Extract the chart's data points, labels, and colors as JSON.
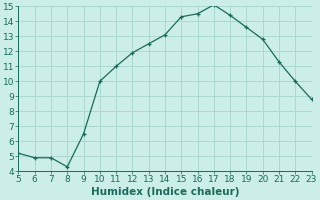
{
  "x": [
    5,
    6,
    7,
    8,
    9,
    10,
    11,
    12,
    13,
    14,
    15,
    16,
    17,
    18,
    19,
    20,
    21,
    22,
    23
  ],
  "y": [
    5.2,
    4.9,
    4.9,
    4.3,
    6.5,
    10.0,
    11.0,
    11.9,
    12.5,
    13.1,
    14.3,
    14.5,
    15.1,
    14.4,
    13.6,
    12.8,
    11.3,
    10.0,
    8.8
  ],
  "line_color": "#1a6b5a",
  "marker": "+",
  "bg_color": "#cceee8",
  "grid_color": "#aad8d0",
  "xlabel": "Humidex (Indice chaleur)",
  "xlim": [
    5,
    23
  ],
  "ylim": [
    4,
    15
  ],
  "xticks": [
    5,
    6,
    7,
    8,
    9,
    10,
    11,
    12,
    13,
    14,
    15,
    16,
    17,
    18,
    19,
    20,
    21,
    22,
    23
  ],
  "yticks": [
    4,
    5,
    6,
    7,
    8,
    9,
    10,
    11,
    12,
    13,
    14,
    15
  ],
  "xlabel_fontsize": 7.5,
  "tick_fontsize": 6.5
}
